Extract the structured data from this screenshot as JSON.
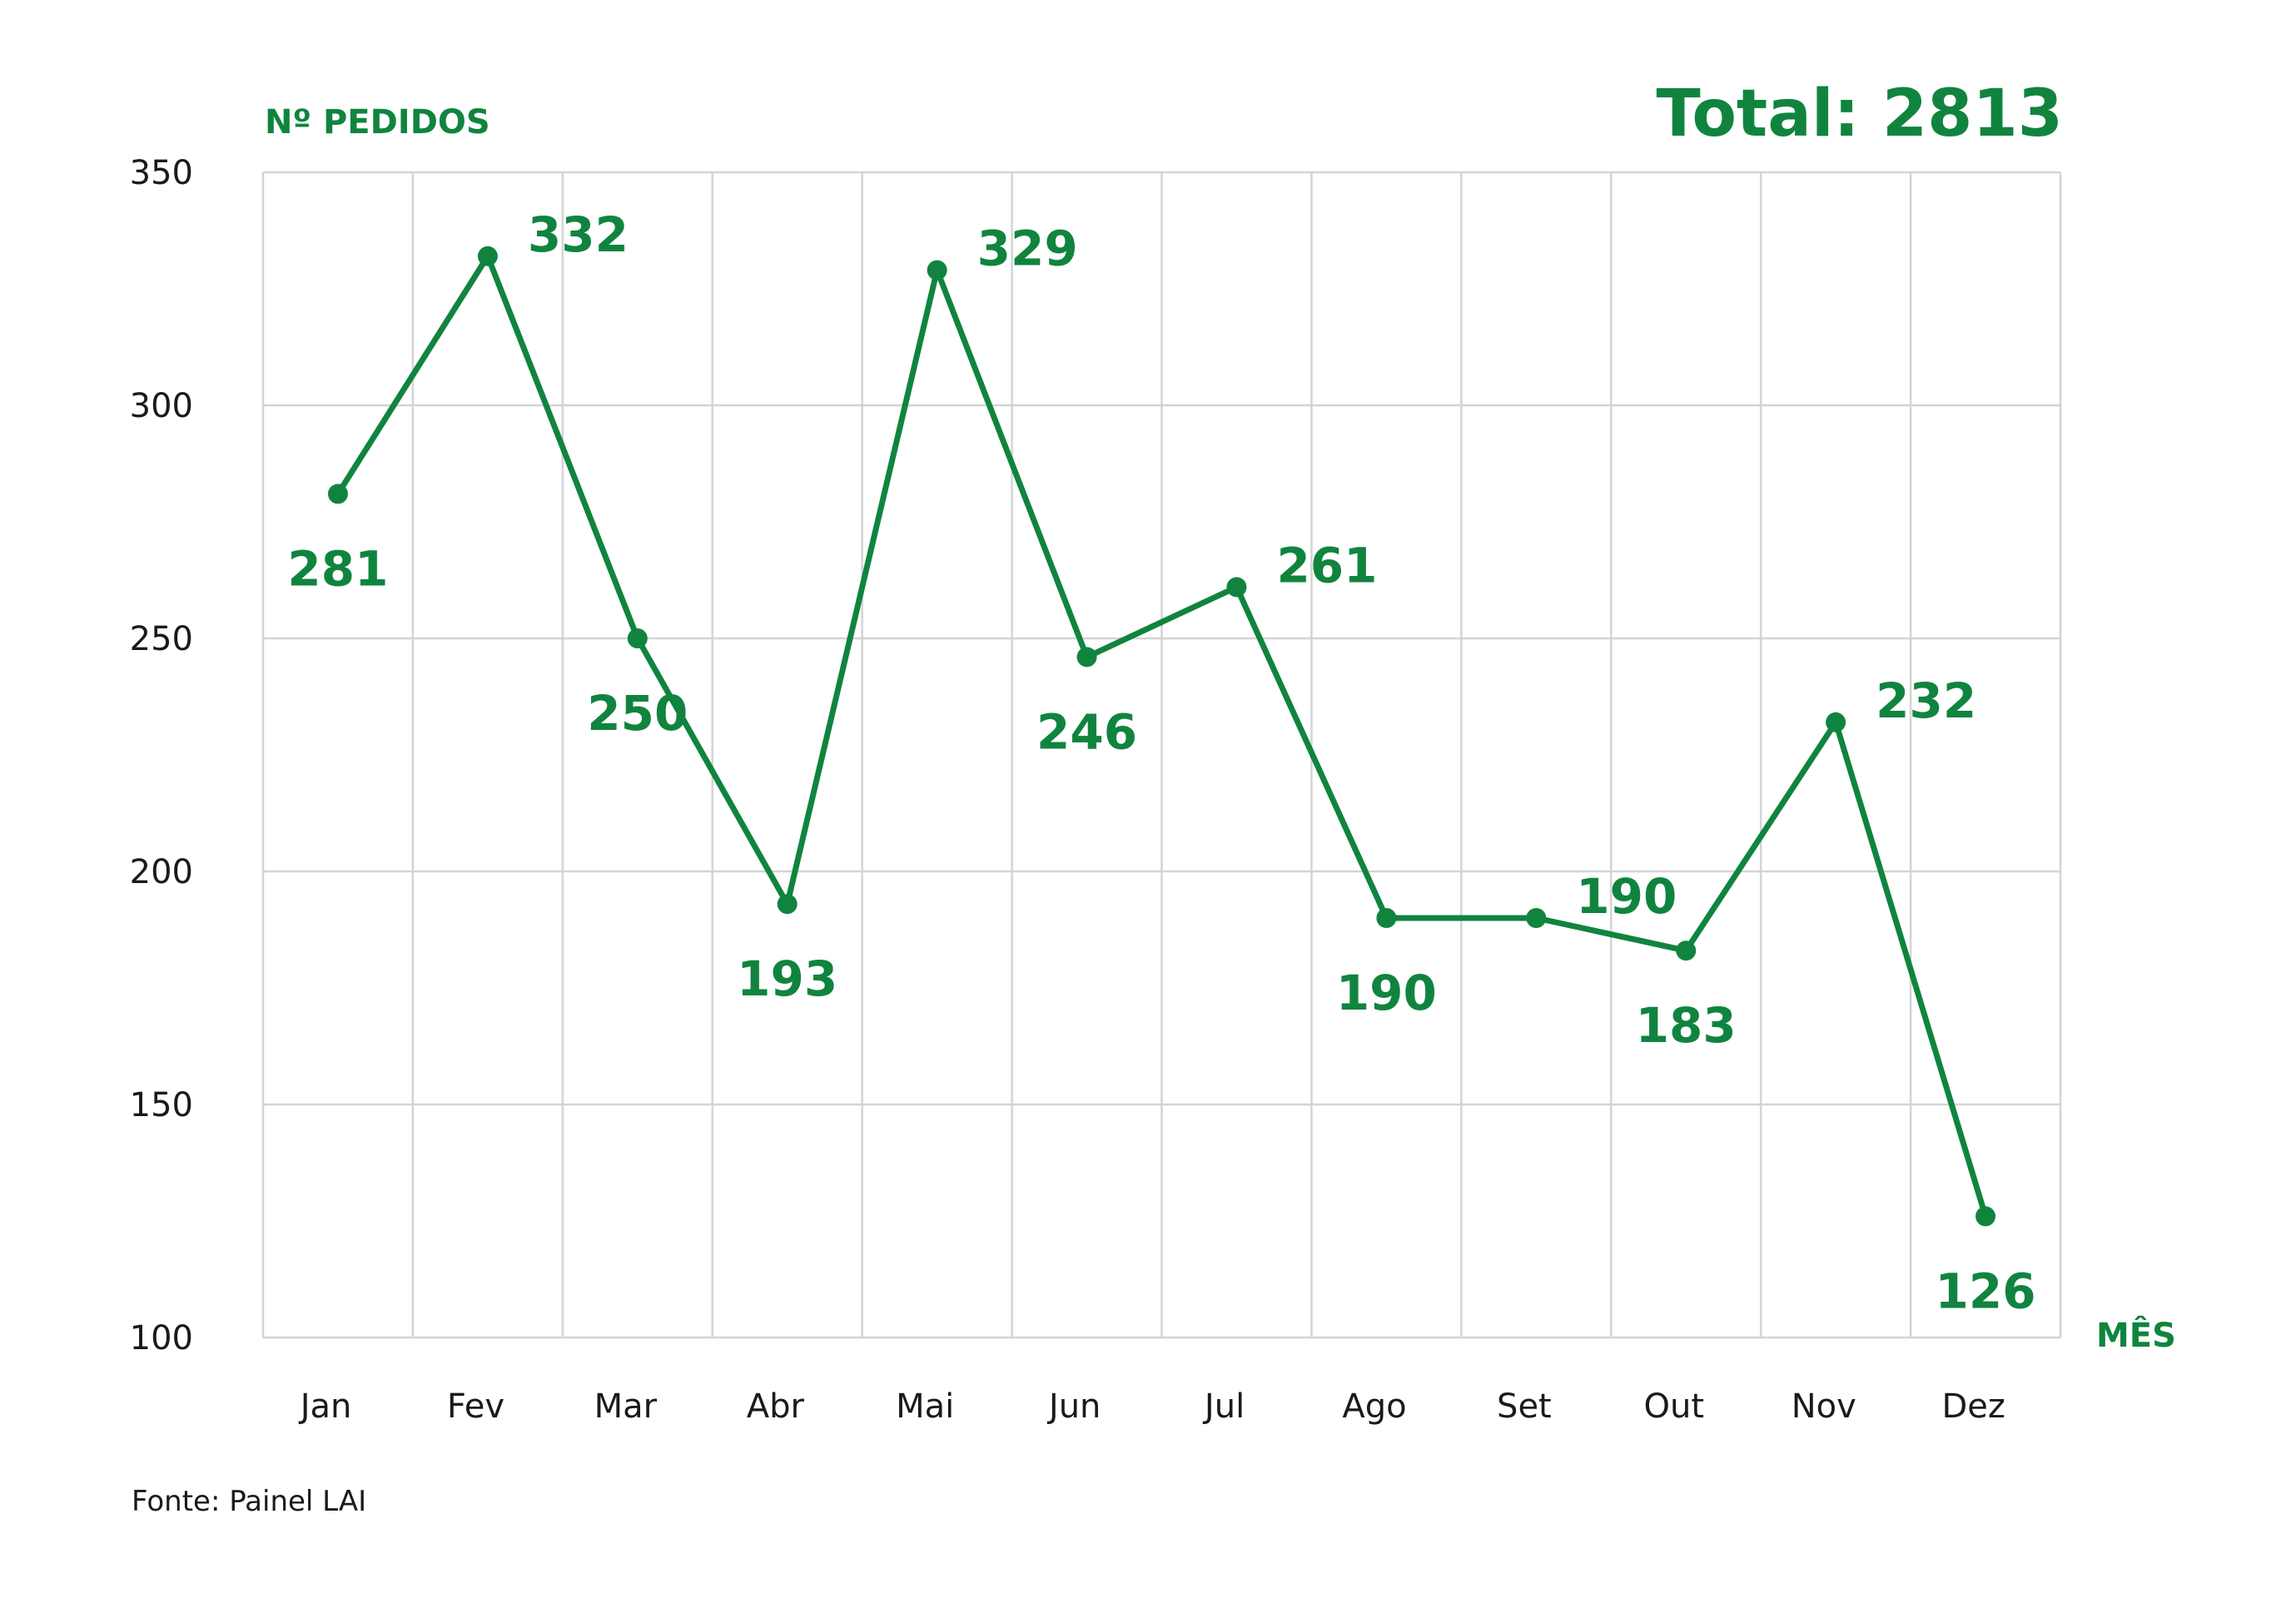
{
  "colors": {
    "accent": "#10843f",
    "grid": "#d4d4d4",
    "text": "#1a1a1a"
  },
  "header": {
    "y_axis_title": "Nº PEDIDOS",
    "total": "Total: 2813"
  },
  "footer": {
    "source": "Fonte: Painel LAI"
  },
  "chart_data": {
    "type": "line",
    "title": "Total: 2813",
    "xlabel": "MÊS",
    "ylabel": "Nº PEDIDOS",
    "ylim": [
      100,
      350
    ],
    "yticks": [
      100,
      150,
      200,
      250,
      300,
      350
    ],
    "grid": true,
    "categories": [
      "Jan",
      "Fev",
      "Mar",
      "Abr",
      "Mai",
      "Jun",
      "Jul",
      "Ago",
      "Set",
      "Out",
      "Nov",
      "Dez"
    ],
    "series": [
      {
        "name": "Pedidos",
        "values": [
          281,
          332,
          250,
          193,
          329,
          246,
          261,
          190,
          190,
          183,
          232,
          126
        ],
        "label_position": [
          "below",
          "above",
          "below",
          "below",
          "above",
          "below",
          "above",
          "below",
          "above",
          "below",
          "above",
          "below"
        ]
      }
    ]
  }
}
